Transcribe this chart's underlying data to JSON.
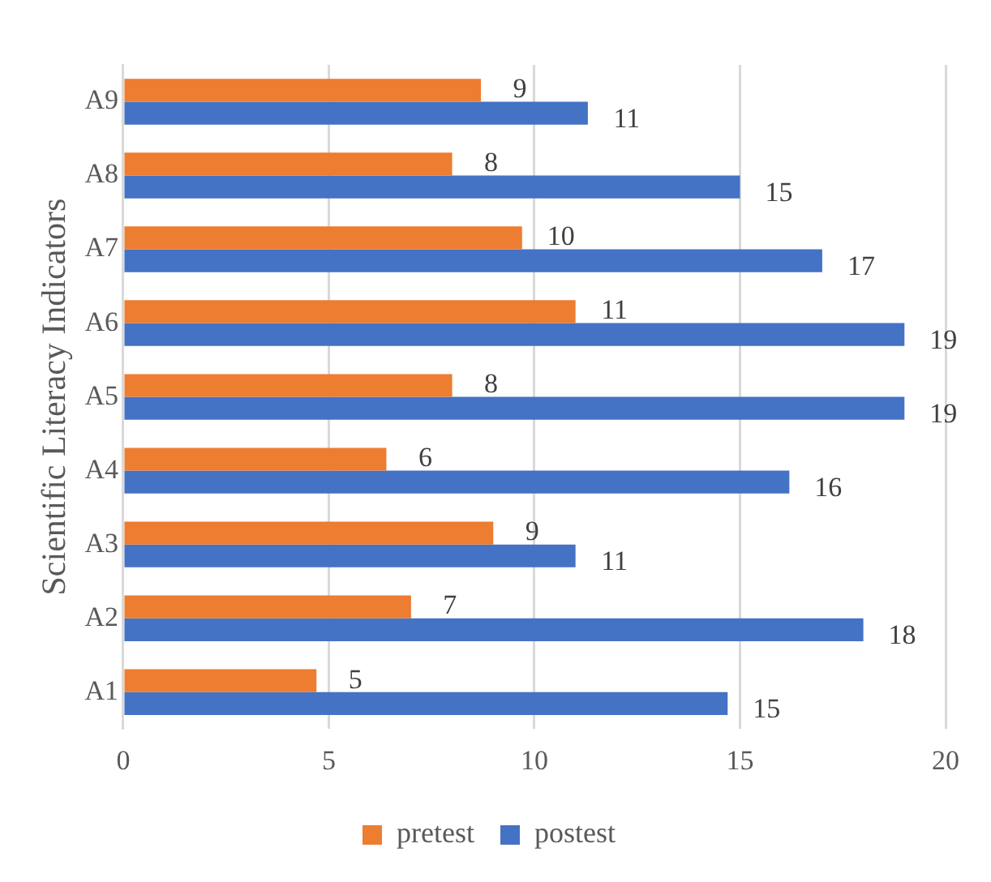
{
  "chart_data": {
    "type": "bar",
    "orientation": "horizontal",
    "ylabel": "Scientific Literacy Indicators",
    "categories": [
      "A9",
      "A8",
      "A7",
      "A6",
      "A5",
      "A4",
      "A3",
      "A2",
      "A1"
    ],
    "series": [
      {
        "name": "pretest",
        "color": "#ed7d31",
        "values": [
          8.7,
          8.0,
          9.7,
          11.0,
          8.0,
          6.4,
          9.0,
          7.0,
          4.7
        ],
        "value_labels": [
          "9",
          "8",
          "10",
          "11",
          "8",
          "6",
          "9",
          "7",
          "5"
        ]
      },
      {
        "name": "postest",
        "color": "#4472c4",
        "values": [
          11.3,
          15.0,
          17.0,
          19.0,
          19.0,
          16.2,
          11.0,
          18.0,
          14.7
        ],
        "value_labels": [
          "11",
          "15",
          "17",
          "19",
          "19",
          "16",
          "11",
          "18",
          "15"
        ]
      }
    ],
    "xlim": [
      0,
      20
    ],
    "xticks": [
      0,
      5,
      10,
      15,
      20
    ],
    "grid": "x",
    "legend": "bottom"
  }
}
